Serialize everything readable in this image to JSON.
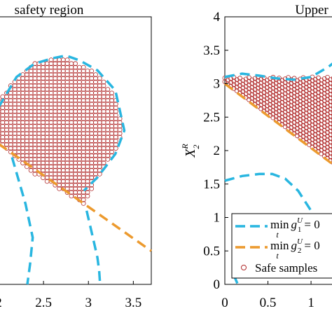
{
  "chart_data": [
    {
      "type": "scatter",
      "title": "safety region",
      "xlabel": "",
      "ylabel": "",
      "xlim": [
        2.0,
        3.7
      ],
      "ylim": [
        0.0,
        4.0
      ],
      "xticks": [
        "2",
        "2.5",
        "3",
        "3.5"
      ],
      "grid": false,
      "curves": [
        {
          "style": "blue-dashed",
          "x": [
            2.0,
            2.2,
            2.4,
            2.6,
            2.75,
            2.9,
            3.1,
            3.3,
            3.4,
            3.3,
            3.1,
            2.95
          ],
          "y": [
            2.65,
            3.1,
            3.3,
            3.38,
            3.42,
            3.35,
            3.2,
            2.9,
            2.3,
            1.95,
            1.6,
            1.4
          ]
        },
        {
          "style": "blue-dashed",
          "x": [
            2.15,
            2.3,
            2.38,
            2.35,
            2.32
          ],
          "y": [
            1.9,
            1.2,
            0.7,
            0.3,
            0.0
          ]
        },
        {
          "style": "blue-dashed",
          "x": [
            2.98,
            3.05,
            3.1,
            3.12,
            3.13
          ],
          "y": [
            1.1,
            0.7,
            0.4,
            0.2,
            0.0
          ]
        },
        {
          "style": "orange-dashed",
          "x": [
            2.0,
            3.7
          ],
          "y": [
            2.1,
            0.5
          ]
        }
      ],
      "samples": {
        "xrange": [
          2.0,
          3.45
        ],
        "yrange": [
          1.15,
          3.4
        ]
      }
    },
    {
      "type": "scatter",
      "title": "Upper",
      "xlabel": "",
      "ylabel": "X_2^R",
      "xlim": [
        0.0,
        1.3
      ],
      "ylim": [
        0.0,
        4.0
      ],
      "xticks": [
        "0",
        "0.5",
        "1"
      ],
      "yticks": [
        "0",
        "0.5",
        "1",
        "1.5",
        "2",
        "2.5",
        "3",
        "3.5",
        "4"
      ],
      "grid": false,
      "curves": [
        {
          "style": "blue-dashed",
          "x": [
            0.0,
            0.2,
            0.4,
            0.6,
            0.8,
            1.0,
            1.2,
            1.3
          ],
          "y": [
            3.1,
            3.15,
            3.12,
            3.08,
            3.06,
            3.1,
            3.25,
            3.35
          ]
        },
        {
          "style": "blue-dashed",
          "x": [
            0.0,
            0.2,
            0.4,
            0.55,
            0.7,
            0.85,
            1.0,
            1.1
          ],
          "y": [
            1.55,
            1.62,
            1.65,
            1.65,
            1.58,
            1.4,
            1.1,
            0.8
          ]
        },
        {
          "style": "blue-dashed",
          "x": [
            0.1,
            0.15
          ],
          "y": [
            0.15,
            0.0
          ]
        },
        {
          "style": "orange-dashed",
          "x": [
            0.0,
            1.3
          ],
          "y": [
            3.0,
            1.75
          ]
        }
      ],
      "samples": {
        "xrange": [
          0.0,
          1.3
        ],
        "ylower_line": true
      }
    }
  ],
  "legend": {
    "position": "bottom-right",
    "entries": [
      {
        "label_main": "min",
        "label_sub": "t",
        "label_expr": "g",
        "label_sup": "U",
        "label_idx": "1",
        "label_eq": "= 0",
        "style": "blue-dashed"
      },
      {
        "label_main": "min",
        "label_sub": "t",
        "label_expr": "g",
        "label_sup": "U",
        "label_idx": "2",
        "label_eq": "= 0",
        "style": "orange-dashed"
      },
      {
        "label_text": "Safe samples",
        "style": "red-circle"
      }
    ]
  },
  "colors": {
    "blue": "#29b6e0",
    "orange": "#ec9a2e",
    "sample": "#b02a2a"
  }
}
